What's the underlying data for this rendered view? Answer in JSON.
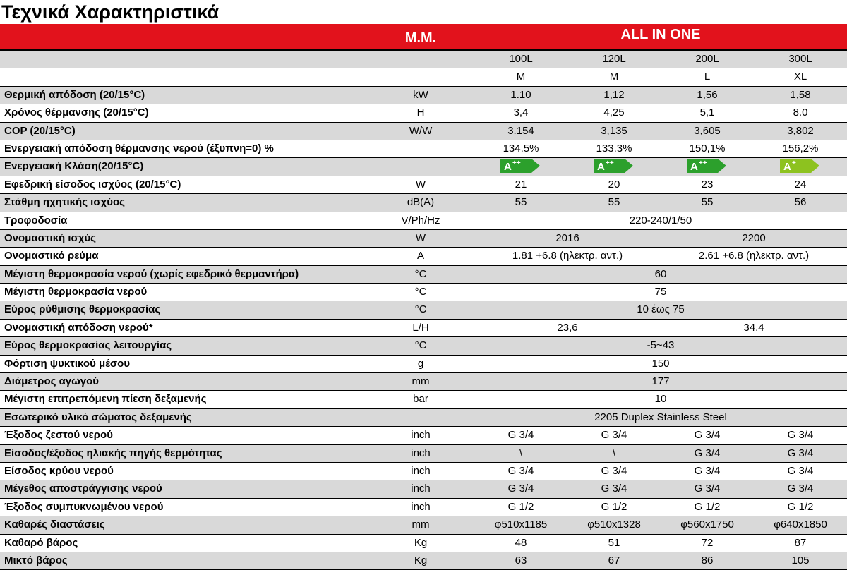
{
  "title": "Τεχνικά Χαρακτηριστικά",
  "header": {
    "unit_label": "Μ.Μ.",
    "group_label": "ALL IN ONE"
  },
  "models": [
    "100L",
    "120L",
    "200L",
    "300L"
  ],
  "sizes": [
    "M",
    "M",
    "L",
    "XL"
  ],
  "rows": [
    {
      "label": "Θερμική απόδοση (20/15°C)",
      "unit": "kW",
      "values": [
        "1.10",
        "1,12",
        "1,56",
        "1,58"
      ]
    },
    {
      "label": "Χρόνος θέρμανσης (20/15°C)",
      "unit": "H",
      "values": [
        "3,4",
        "4,25",
        "5,1",
        "8.0"
      ]
    },
    {
      "label": "COP (20/15°C)",
      "unit": "W/W",
      "values": [
        "3.154",
        "3,135",
        "3,605",
        "3,802"
      ]
    },
    {
      "label": "Ενεργειακή απόδοση θέρμανσης νερού (έξυπνη=0) %",
      "unit": "",
      "values": [
        "134.5%",
        "133.3%",
        "150,1%",
        "156,2%"
      ]
    },
    {
      "label": "Ενεργειακή Κλάση(20/15°C)",
      "unit": "",
      "badges": [
        {
          "text": "A",
          "sup": "++",
          "color": "#2ca02c"
        },
        {
          "text": "A",
          "sup": "++",
          "color": "#2ca02c"
        },
        {
          "text": "A",
          "sup": "++",
          "color": "#2ca02c"
        },
        {
          "text": "A",
          "sup": "+",
          "color": "#8dc21f"
        }
      ]
    },
    {
      "label": "Εφεδρική είσοδος ισχύος (20/15°C)",
      "unit": "W",
      "values": [
        "21",
        "20",
        "23",
        "24"
      ]
    },
    {
      "label": "Στάθμη ηχητικής ισχύος",
      "unit": "dB(A)",
      "values": [
        "55",
        "55",
        "55",
        "56"
      ]
    },
    {
      "label": "Τροφοδοσία",
      "unit": "V/Ph/Hz",
      "all": "220-240/1/50"
    },
    {
      "label": "Ονομαστική ισχύς",
      "unit": "W",
      "pair": [
        "2016",
        "2200"
      ]
    },
    {
      "label": "Ονομαστικό ρεύμα",
      "unit": "A",
      "pair": [
        "1.81 +6.8 (ηλεκτρ. αντ.)",
        "2.61 +6.8 (ηλεκτρ. αντ.)"
      ]
    },
    {
      "label": "Μέγιστη θερμοκρασία νερού (χωρίς εφεδρικό θερμαντήρα)",
      "unit": "°C",
      "all": "60"
    },
    {
      "label": "Μέγιστη θερμοκρασία νερού",
      "unit": "°C",
      "all": "75"
    },
    {
      "label": "Εύρος ρύθμισης θερμοκρασίας",
      "unit": "°C",
      "all": "10 έως 75"
    },
    {
      "label": "Ονομαστική απόδοση νερού*",
      "unit": "L/H",
      "pair": [
        "23,6",
        "34,4"
      ]
    },
    {
      "label": "Εύρος θερμοκρασίας λειτουργίας",
      "unit": "°C",
      "all": "-5~43"
    },
    {
      "label": "Φόρτιση ψυκτικού μέσου",
      "unit": "g",
      "all": "150"
    },
    {
      "label": "Διάμετρος αγωγού",
      "unit": "mm",
      "all": "177"
    },
    {
      "label": "Μέγιστη επιτρεπόμενη πίεση δεξαμενής",
      "unit": "bar",
      "all": "10"
    },
    {
      "label": "Εσωτερικό υλικό σώματος δεξαμενής",
      "unit": "",
      "all": "2205 Duplex Stainless Steel"
    },
    {
      "label": "Έξοδος ζεστού νερού",
      "unit": "inch",
      "values": [
        "G 3/4",
        "G 3/4",
        "G 3/4",
        "G 3/4"
      ]
    },
    {
      "label": "Είσοδος/έξοδος ηλιακής πηγής θερμότητας",
      "unit": "inch",
      "values": [
        "\\",
        "\\",
        "G 3/4",
        "G 3/4"
      ]
    },
    {
      "label": "Είσοδος κρύου νερού",
      "unit": "inch",
      "values": [
        "G 3/4",
        "G 3/4",
        "G 3/4",
        "G 3/4"
      ]
    },
    {
      "label": "Μέγεθος αποστράγγισης νερού",
      "unit": "inch",
      "values": [
        "G 3/4",
        "G 3/4",
        "G 3/4",
        "G 3/4"
      ]
    },
    {
      "label": "Έξοδος συμπυκνωμένου νερού",
      "unit": "inch",
      "values": [
        "G 1/2",
        "G 1/2",
        "G 1/2",
        "G 1/2"
      ]
    },
    {
      "label": "Καθαρές διαστάσεις",
      "unit": "mm",
      "values": [
        "φ510x1185",
        "φ510x1328",
        "φ560x1750",
        "φ640x1850"
      ]
    },
    {
      "label": "Καθαρό βάρος",
      "unit": "Kg",
      "values": [
        "48",
        "51",
        "72",
        "87"
      ]
    },
    {
      "label": "Μικτό βάρος",
      "unit": "Kg",
      "values": [
        "63",
        "67",
        "86",
        "105"
      ]
    }
  ]
}
